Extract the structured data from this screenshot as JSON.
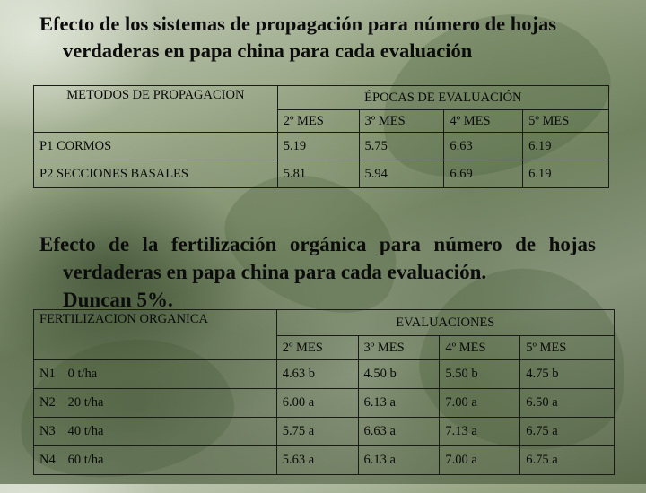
{
  "title1": {
    "line1": "Efecto de los sistemas de propagación para número de hojas",
    "line2": "verdaderas en papa china para cada evaluación"
  },
  "table1": {
    "col1_header": "METODOS DE PROPAGACION",
    "group_header": "ÉPOCAS DE EVALUACIÓN",
    "sub_headers": [
      "2º MES",
      "3º MES",
      "4º MES",
      "5º MES"
    ],
    "rows": [
      {
        "label": "P1 CORMOS",
        "values": [
          "5.19",
          "5.75",
          "6.63",
          "6.19"
        ]
      },
      {
        "label": "P2 SECCIONES BASALES",
        "values": [
          "5.81",
          "5.94",
          "6.69",
          "6.19"
        ]
      }
    ]
  },
  "title2": {
    "line1": "Efecto de la fertilización orgánica para número de hojas",
    "line2": "verdaderas en papa china para cada evaluación.",
    "line3": "Duncan 5%."
  },
  "table2": {
    "col1_header": "FERTILIZACION ORGANICA",
    "group_header": "EVALUACIONES",
    "sub_headers": [
      "2º MES",
      "3º MES",
      "4º MES",
      "5º MES"
    ],
    "rows": [
      {
        "code": "N1",
        "dose": "0 t/ha",
        "values": [
          "4.63 b",
          "4.50 b",
          "5.50 b",
          "4.75 b"
        ]
      },
      {
        "code": "N2",
        "dose": "20 t/ha",
        "values": [
          "6.00 a",
          "6.13 a",
          "7.00 a",
          "6.50 a"
        ]
      },
      {
        "code": "N3",
        "dose": "40 t/ha",
        "values": [
          "5.75 a",
          "6.63 a",
          "7.13 a",
          "6.75 a"
        ]
      },
      {
        "code": "N4",
        "dose": "60 t/ha",
        "values": [
          "5.63 a",
          "6.13 a",
          "7.00 a",
          "6.75 a"
        ]
      }
    ]
  }
}
